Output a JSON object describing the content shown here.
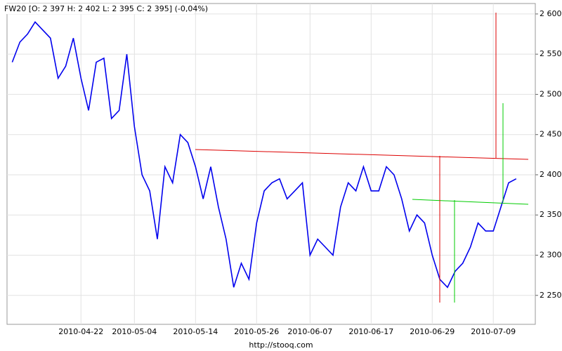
{
  "chart_data": {
    "type": "line",
    "title": "FW20 [O: 2 397  H: 2 402  L: 2 395  C: 2 395] (-0,04%)",
    "source": "http://stooq.com",
    "categories": [
      null,
      null,
      null,
      null,
      null,
      null,
      null,
      null,
      null,
      "2010-04-22",
      null,
      null,
      null,
      null,
      null,
      null,
      "2010-05-04",
      null,
      null,
      null,
      null,
      null,
      null,
      null,
      "2010-05-14",
      null,
      null,
      null,
      null,
      null,
      null,
      null,
      "2010-05-26",
      null,
      null,
      null,
      null,
      null,
      null,
      "2010-06-07",
      null,
      null,
      null,
      null,
      null,
      null,
      null,
      "2010-06-17",
      null,
      null,
      null,
      null,
      null,
      null,
      null,
      "2010-06-29",
      null,
      null,
      null,
      null,
      null,
      null,
      null,
      "2010-07-09",
      null,
      null,
      null,
      null,
      null
    ],
    "series": [
      {
        "name": "FW20",
        "color": "#0000ee",
        "values": [
          2540,
          2565,
          2575,
          2590,
          2580,
          2570,
          2520,
          2535,
          2570,
          2520,
          2480,
          2540,
          2545,
          2470,
          2480,
          2550,
          2460,
          2400,
          2380,
          2320,
          2410,
          2390,
          2450,
          2440,
          2410,
          2370,
          2410,
          2360,
          2320,
          2260,
          2290,
          2270,
          2340,
          2380,
          2390,
          2395,
          2370,
          2380,
          2390,
          2300,
          2320,
          2310,
          2300,
          2360,
          2390,
          2380,
          2410,
          2380,
          2380,
          2410,
          2400,
          2370,
          2330,
          2350,
          2340,
          2300,
          2270,
          2260,
          2280,
          2290,
          2310,
          2340,
          2330,
          2330,
          2360,
          2390,
          2395,
          null,
          null
        ]
      }
    ],
    "ylim": [
      2214,
      2613
    ],
    "yticks": [
      {
        "value": 2250,
        "label": "2 250"
      },
      {
        "value": 2300,
        "label": "2 300"
      },
      {
        "value": 2350,
        "label": "2 350"
      },
      {
        "value": 2400,
        "label": "2 400"
      },
      {
        "value": 2450,
        "label": "2 450"
      },
      {
        "value": 2500,
        "label": "2 500"
      },
      {
        "value": 2550,
        "label": "2 550"
      },
      {
        "value": 2600,
        "label": "2 600"
      }
    ],
    "grid": true
  }
}
